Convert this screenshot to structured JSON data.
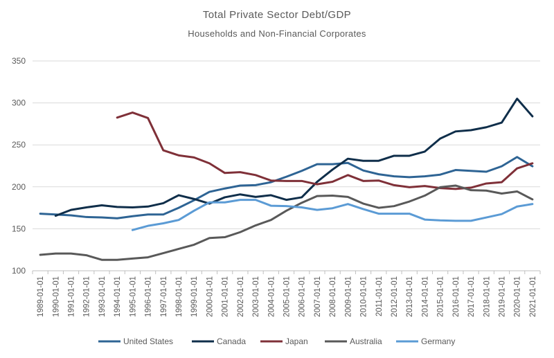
{
  "chart_data": {
    "type": "line",
    "title": "Total Private Sector Debt/GDP",
    "subtitle": "Households and Non-Financial Corporates",
    "xlabel": "",
    "ylabel": "",
    "ylim": [
      100,
      350
    ],
    "yticks": [
      100,
      150,
      200,
      250,
      300,
      350
    ],
    "grid": true,
    "legend_position": "bottom",
    "categories": [
      "1989-01-01",
      "1990-01-01",
      "1991-01-01",
      "1992-01-01",
      "1993-01-01",
      "1994-01-01",
      "1995-01-01",
      "1996-01-01",
      "1997-01-01",
      "1998-01-01",
      "1999-01-01",
      "2000-01-01",
      "2001-01-01",
      "2002-01-01",
      "2003-01-01",
      "2004-01-01",
      "2005-01-01",
      "2006-01-01",
      "2007-01-01",
      "2008-01-01",
      "2009-01-01",
      "2010-01-01",
      "2011-01-01",
      "2012-01-01",
      "2013-01-01",
      "2014-01-01",
      "2015-01-01",
      "2016-01-01",
      "2017-01-01",
      "2018-01-01",
      "2019-01-01",
      "2020-01-01",
      "2021-01-01"
    ],
    "series": [
      {
        "name": "United States",
        "color": "#2e6494",
        "values": [
          168,
          167,
          166,
          164,
          163.5,
          162.5,
          165,
          167,
          167,
          175,
          184,
          194,
          198,
          201.5,
          202,
          205.5,
          212,
          219,
          227,
          227,
          228.5,
          219.5,
          215,
          212.5,
          211.5,
          212.5,
          214.5,
          220,
          219,
          218,
          224.5,
          235.5,
          224.5
        ]
      },
      {
        "name": "Canada",
        "color": "#0f2e4a",
        "values": [
          null,
          165.5,
          172.5,
          175.5,
          178,
          176,
          175.5,
          176.5,
          180.5,
          190,
          185.5,
          180,
          187.5,
          191,
          188,
          190,
          184.5,
          187.5,
          206,
          220.5,
          233.5,
          231,
          231,
          237,
          237,
          242,
          257.5,
          266,
          267.5,
          271,
          276.5,
          305,
          284
        ]
      },
      {
        "name": "Japan",
        "color": "#7f3038",
        "values": [
          null,
          null,
          null,
          null,
          null,
          282.5,
          288.5,
          282,
          243.5,
          237.5,
          235,
          228,
          216.5,
          217.5,
          214,
          207.5,
          207,
          207,
          203,
          206,
          214,
          207,
          207.5,
          202,
          199.5,
          201,
          198.5,
          197.5,
          199,
          204,
          205.5,
          222,
          228
        ]
      },
      {
        "name": "Australia",
        "color": "#595959",
        "values": [
          119,
          120.5,
          120.5,
          118.5,
          113,
          113,
          114.5,
          116,
          121,
          126,
          131,
          139,
          140,
          146,
          154,
          160.5,
          171.5,
          181,
          189,
          189.5,
          188,
          180,
          175,
          177,
          182.5,
          189.5,
          199.5,
          201.5,
          196,
          195.5,
          192,
          194.5,
          185
        ]
      },
      {
        "name": "Germany",
        "color": "#5b9bd5",
        "values": [
          null,
          null,
          null,
          null,
          null,
          null,
          148.5,
          153.5,
          156.5,
          160.5,
          171.5,
          181.5,
          181.5,
          184.5,
          184.5,
          177.5,
          177,
          175.5,
          172.5,
          174.5,
          179.5,
          173.5,
          168,
          168,
          168,
          161,
          160,
          159.5,
          159.5,
          163.5,
          167.5,
          176.5,
          179.5
        ]
      }
    ]
  }
}
